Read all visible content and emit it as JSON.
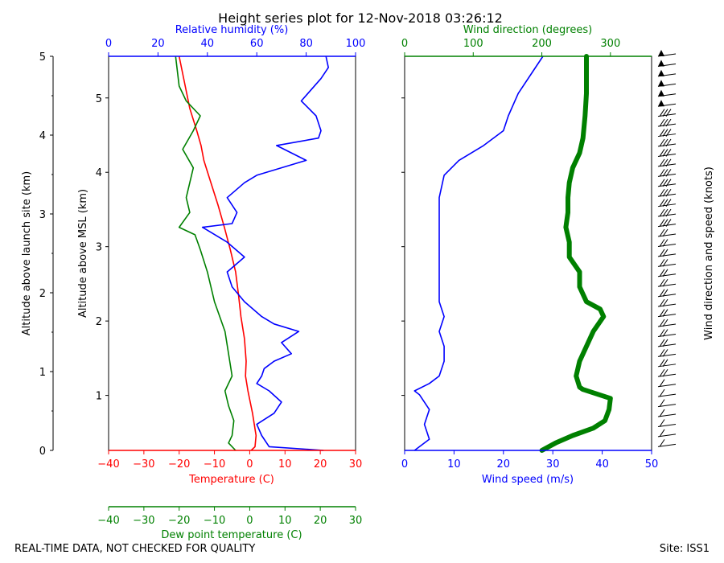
{
  "title": "Height series plot for 12-Nov-2018 03:26:12",
  "footer": {
    "left": "REAL-TIME DATA, NOT CHECKED FOR QUALITY",
    "right": "Site: ISS1"
  },
  "colors": {
    "temperature": "#ff0000",
    "dewpoint": "#008000",
    "humidity": "#0000ff",
    "wind_speed": "#0000ff",
    "wind_direction": "#008000",
    "barbs": "#000000"
  },
  "chart_data": [
    {
      "type": "line",
      "name": "thermo-panel",
      "ylabel_outer": "Altitude above launch site (km)",
      "ylabel_inner": "Altitude above MSL (km)",
      "outer_ticks": [
        "0",
        "1",
        "2",
        "3",
        "4",
        "5"
      ],
      "outer_ylim": [
        0,
        5
      ],
      "msl_ticks": [
        "0",
        "1",
        "2",
        "3",
        "4",
        "5"
      ],
      "msl_offset_km": 0.26,
      "x_bottom": {
        "label": "Temperature (C)",
        "range": [
          -40,
          30
        ],
        "ticks": [
          "-40",
          "-30",
          "-20",
          "-10",
          "0",
          "10",
          "20",
          "30"
        ]
      },
      "x_dew": {
        "label": "Dew point temperature (C)",
        "range": [
          -40,
          30
        ],
        "ticks": [
          "-40",
          "-30",
          "-20",
          "-10",
          "0",
          "10",
          "20",
          "30"
        ]
      },
      "x_top": {
        "label": "Relative humidity (%)",
        "range": [
          0,
          100
        ],
        "ticks": [
          "0",
          "20",
          "40",
          "60",
          "80",
          "100"
        ]
      },
      "series": [
        {
          "name": "Temperature",
          "axis": "temp",
          "points": [
            [
              0.4,
              0
            ],
            [
              1.5,
              0.05
            ],
            [
              1.8,
              0.2
            ],
            [
              0.8,
              0.5
            ],
            [
              -0.5,
              0.8
            ],
            [
              -1.2,
              1
            ],
            [
              -1,
              1.2
            ],
            [
              -1.5,
              1.5
            ],
            [
              -2.5,
              1.8
            ],
            [
              -3.2,
              2.1
            ],
            [
              -4,
              2.4
            ],
            [
              -5.5,
              2.7
            ],
            [
              -7.2,
              3
            ],
            [
              -9,
              3.3
            ],
            [
              -11,
              3.6
            ],
            [
              -13,
              3.9
            ],
            [
              -13.8,
              4.1
            ],
            [
              -15,
              4.3
            ],
            [
              -17,
              4.6
            ],
            [
              -20,
              5.3
            ]
          ]
        },
        {
          "name": "Dew point",
          "axis": "temp",
          "points": [
            [
              -4,
              0
            ],
            [
              -6,
              0.1
            ],
            [
              -5,
              0.2
            ],
            [
              -4.5,
              0.4
            ],
            [
              -6,
              0.6
            ],
            [
              -7,
              0.8
            ],
            [
              -5,
              1
            ],
            [
              -6,
              1.3
            ],
            [
              -7,
              1.6
            ],
            [
              -10,
              2
            ],
            [
              -12,
              2.4
            ],
            [
              -14,
              2.7
            ],
            [
              -15.5,
              2.9
            ],
            [
              -20,
              3
            ],
            [
              -17,
              3.2
            ],
            [
              -18,
              3.4
            ],
            [
              -17,
              3.6
            ],
            [
              -16,
              3.8
            ],
            [
              -19,
              4.05
            ],
            [
              -16,
              4.3
            ],
            [
              -14,
              4.5
            ],
            [
              -18,
              4.7
            ],
            [
              -20,
              4.9
            ],
            [
              -21,
              5.3
            ]
          ]
        },
        {
          "name": "Relative humidity",
          "axis": "rh",
          "points": [
            [
              87,
              0
            ],
            [
              65,
              0.05
            ],
            [
              62,
              0.2
            ],
            [
              60,
              0.35
            ],
            [
              67,
              0.5
            ],
            [
              70,
              0.65
            ],
            [
              65,
              0.8
            ],
            [
              60,
              0.9
            ],
            [
              62,
              1
            ],
            [
              63,
              1.1
            ],
            [
              67,
              1.2
            ],
            [
              74,
              1.3
            ],
            [
              70,
              1.45
            ],
            [
              77,
              1.6
            ],
            [
              67,
              1.7
            ],
            [
              62,
              1.8
            ],
            [
              55,
              2
            ],
            [
              50,
              2.2
            ],
            [
              48,
              2.4
            ],
            [
              55,
              2.6
            ],
            [
              48,
              2.8
            ],
            [
              38,
              3
            ],
            [
              50,
              3.05
            ],
            [
              52,
              3.2
            ],
            [
              48,
              3.4
            ],
            [
              55,
              3.6
            ],
            [
              60,
              3.7
            ],
            [
              80,
              3.9
            ],
            [
              68,
              4.1
            ],
            [
              85,
              4.2
            ],
            [
              86,
              4.3
            ],
            [
              84,
              4.5
            ],
            [
              78,
              4.7
            ],
            [
              86,
              5.0
            ],
            [
              89,
              5.15
            ],
            [
              88,
              5.3
            ]
          ]
        }
      ]
    },
    {
      "type": "line",
      "name": "wind-panel",
      "xlabel": "Wind speed (m/s)",
      "x_range": [
        0,
        50
      ],
      "x_ticks": [
        "0",
        "10",
        "20",
        "30",
        "40",
        "50"
      ],
      "x_top": {
        "label": "Wind direction (degrees)",
        "range": [
          0,
          360
        ],
        "ticks": [
          "0",
          "100",
          "200",
          "300"
        ]
      },
      "barbs_label": "Wind direction and speed (knots)",
      "series": [
        {
          "name": "Wind speed",
          "axis": "speed",
          "points": [
            [
              2,
              0
            ],
            [
              5,
              0.15
            ],
            [
              4,
              0.35
            ],
            [
              5,
              0.55
            ],
            [
              3,
              0.75
            ],
            [
              2,
              0.8
            ],
            [
              5,
              0.9
            ],
            [
              7,
              1
            ],
            [
              8,
              1.2
            ],
            [
              8,
              1.4
            ],
            [
              7,
              1.6
            ],
            [
              8,
              1.8
            ],
            [
              7,
              2.0
            ],
            [
              7,
              2.3
            ],
            [
              7,
              2.6
            ],
            [
              7,
              2.8
            ],
            [
              7,
              3.0
            ],
            [
              7,
              3.2
            ],
            [
              7,
              3.4
            ],
            [
              8,
              3.7
            ],
            [
              11,
              3.9
            ],
            [
              16,
              4.1
            ],
            [
              20,
              4.3
            ],
            [
              21,
              4.5
            ],
            [
              23,
              4.8
            ],
            [
              26,
              5.1
            ],
            [
              28,
              5.3
            ]
          ]
        },
        {
          "name": "Wind direction",
          "axis": "dir",
          "points": [
            [
              200,
              0
            ],
            [
              220,
              0.1
            ],
            [
              245,
              0.2
            ],
            [
              275,
              0.3
            ],
            [
              292,
              0.4
            ],
            [
              298,
              0.55
            ],
            [
              300,
              0.7
            ],
            [
              260,
              0.82
            ],
            [
              255,
              0.85
            ],
            [
              250,
              1.0
            ],
            [
              255,
              1.2
            ],
            [
              265,
              1.4
            ],
            [
              275,
              1.6
            ],
            [
              290,
              1.8
            ],
            [
              285,
              1.9
            ],
            [
              265,
              2.0
            ],
            [
              255,
              2.2
            ],
            [
              255,
              2.4
            ],
            [
              240,
              2.6
            ],
            [
              240,
              2.8
            ],
            [
              235,
              3.0
            ],
            [
              238,
              3.2
            ],
            [
              238,
              3.4
            ],
            [
              240,
              3.6
            ],
            [
              245,
              3.8
            ],
            [
              255,
              4.0
            ],
            [
              260,
              4.2
            ],
            [
              263,
              4.5
            ],
            [
              265,
              4.8
            ],
            [
              265,
              5.0
            ],
            [
              265,
              5.3
            ]
          ]
        }
      ],
      "barbs": {
        "rows": 40,
        "from_km": 0.05,
        "to_km": 5.3
      }
    }
  ]
}
